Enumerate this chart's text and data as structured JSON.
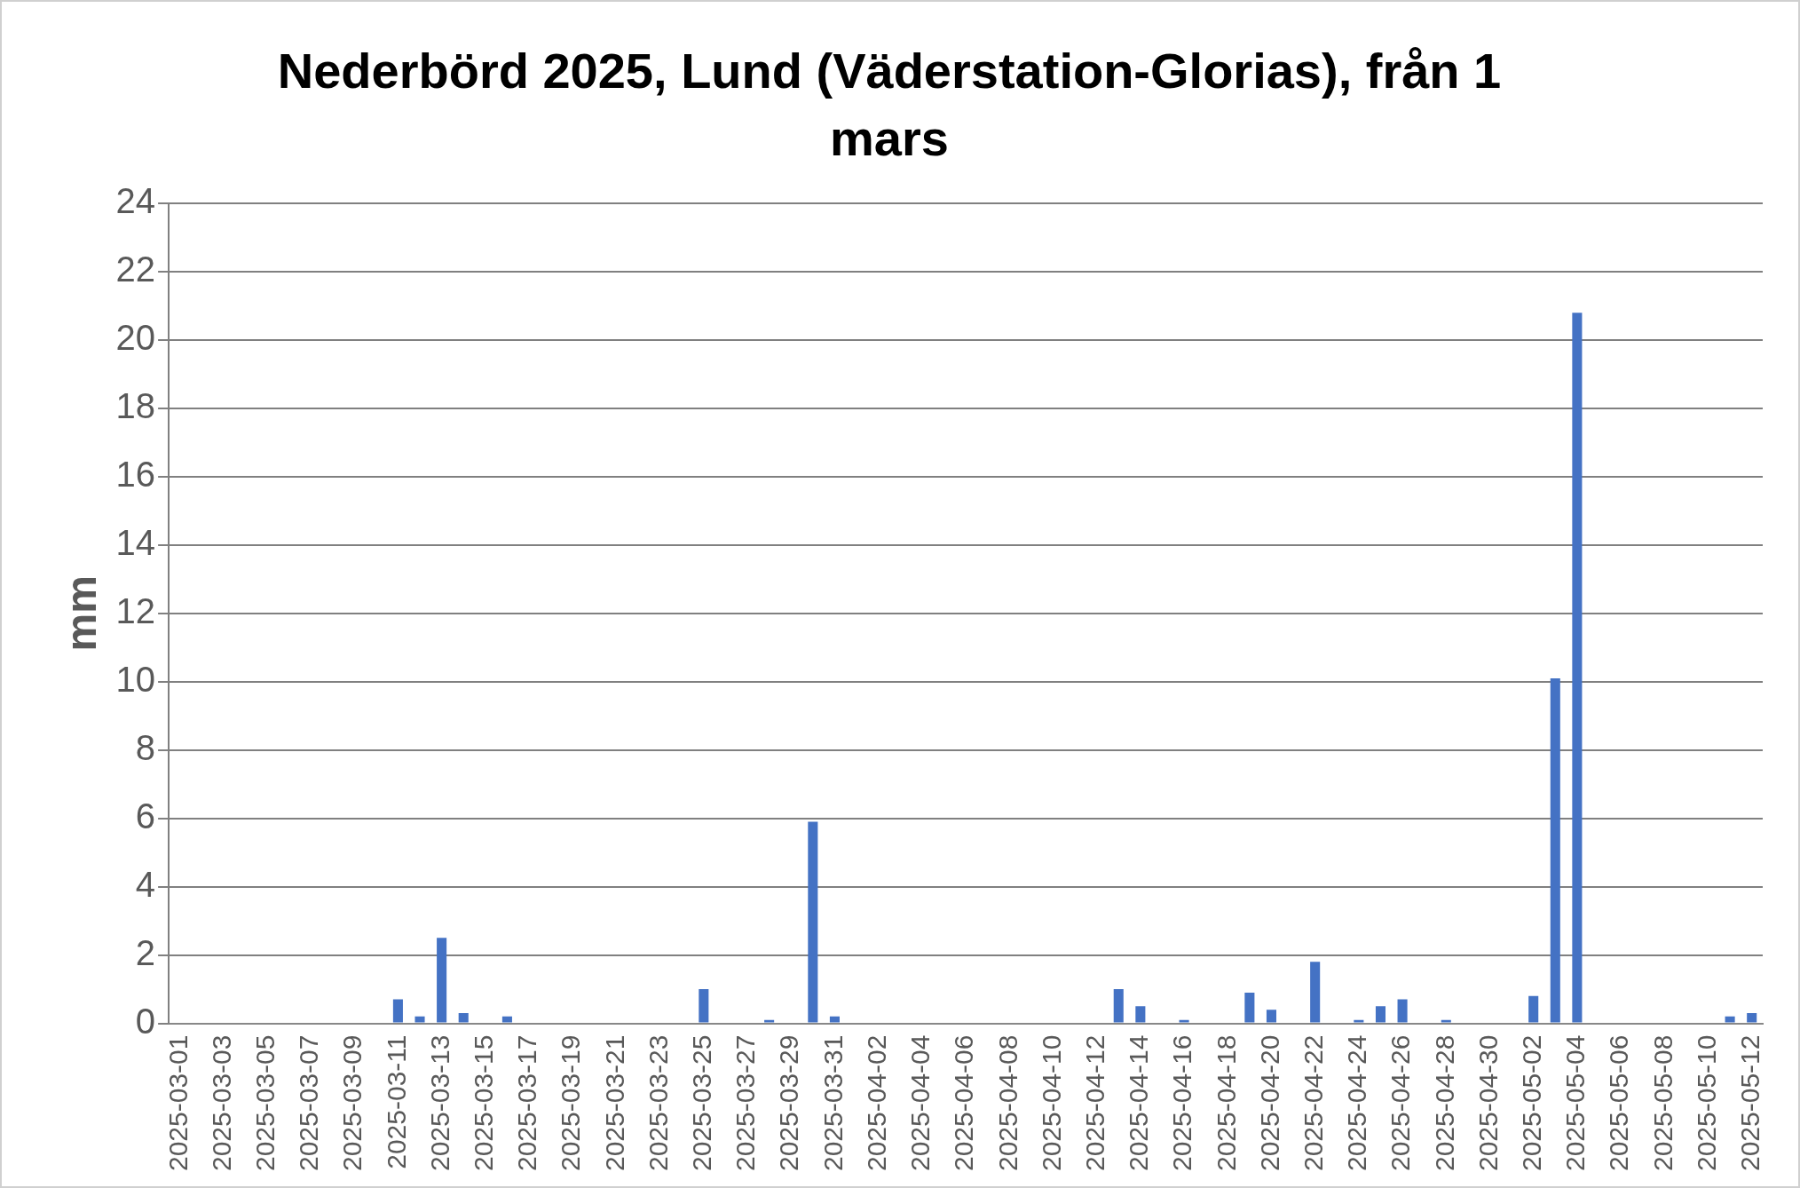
{
  "chart_data": {
    "type": "bar",
    "title": "Nederbörd 2025, Lund (Väderstation-Glorias), från 1 mars",
    "ylabel": "mm",
    "categories": [
      "2025-03-01",
      null,
      "2025-03-03",
      null,
      "2025-03-05",
      null,
      "2025-03-07",
      null,
      "2025-03-09",
      null,
      "2025-03-11",
      null,
      "2025-03-13",
      null,
      "2025-03-15",
      null,
      "2025-03-17",
      null,
      "2025-03-19",
      null,
      "2025-03-21",
      null,
      "2025-03-23",
      null,
      "2025-03-25",
      null,
      "2025-03-27",
      null,
      "2025-03-29",
      null,
      "2025-03-31",
      null,
      "2025-04-02",
      null,
      "2025-04-04",
      null,
      "2025-04-06",
      null,
      "2025-04-08",
      null,
      "2025-04-10",
      null,
      "2025-04-12",
      null,
      "2025-04-14",
      null,
      "2025-04-16",
      null,
      "2025-04-18",
      null,
      "2025-04-20",
      null,
      "2025-04-22",
      null,
      "2025-04-24",
      null,
      "2025-04-26",
      null,
      "2025-04-28",
      null,
      "2025-04-30",
      null,
      "2025-05-02",
      null,
      "2025-05-04",
      null,
      "2025-05-06",
      null,
      "2025-05-08",
      null,
      "2025-05-10",
      null,
      "2025-05-12"
    ],
    "values": [
      0,
      0,
      0,
      0,
      0,
      0,
      0,
      0,
      0,
      0,
      0.7,
      0.2,
      2.5,
      0.3,
      0,
      0.2,
      0,
      0,
      0,
      0,
      0,
      0,
      0,
      0,
      1.0,
      0,
      0,
      0.1,
      0,
      5.9,
      0.2,
      0,
      0,
      0,
      0,
      0,
      0,
      0,
      0,
      0,
      0,
      0,
      0,
      1.0,
      0.5,
      0,
      0.1,
      0,
      0,
      0.9,
      0.4,
      0,
      1.8,
      0,
      0.1,
      0.5,
      0.7,
      0,
      0.1,
      0,
      0,
      0,
      0.8,
      10.1,
      20.8,
      0,
      0,
      0,
      0,
      0,
      0,
      0.2,
      0.3
    ],
    "color": "#4472c4",
    "ylim": [
      0,
      24
    ],
    "yticks": [
      0,
      2,
      4,
      6,
      8,
      10,
      12,
      14,
      16,
      18,
      20,
      22,
      24
    ],
    "grid": "y",
    "legend": false
  }
}
